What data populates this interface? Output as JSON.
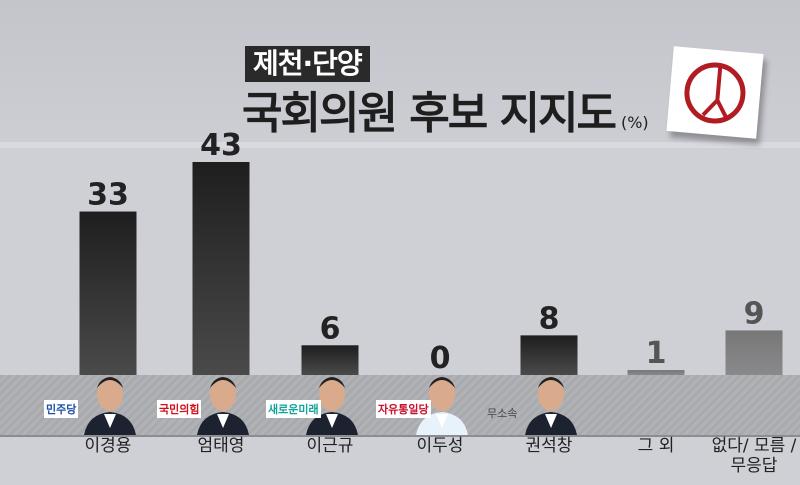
{
  "header": {
    "region": "제천·단양",
    "title": "국회의원 후보 지지도",
    "unit": "(%)",
    "ballot_icon": "ballot-stamp-icon",
    "stamp_color": "#b01c22"
  },
  "chart_data": {
    "type": "bar",
    "title": "국회의원 후보 지지도",
    "unit": "(%)",
    "categories": [
      "이경용",
      "엄태영",
      "이근규",
      "이두성",
      "권석창",
      "그 외",
      "없다/ 모름 /무응답"
    ],
    "values": [
      33,
      43,
      6,
      0,
      8,
      1,
      9
    ],
    "parties": [
      "민주당",
      "국민의힘",
      "새로운미래",
      "자유통일당",
      "무소속",
      "",
      ""
    ],
    "ylim": [
      0,
      45
    ],
    "grid": false,
    "bar_colors": [
      "#2b2b2b",
      "#2b2b2b",
      "#2b2b2b",
      "#2b2b2b",
      "#2b2b2b",
      "#7d7d80",
      "#7d7d80"
    ],
    "party_colors": [
      "#1f4fa8",
      "#d0111a",
      "#11a39c",
      "#c8102e",
      "#444444",
      "",
      ""
    ]
  }
}
